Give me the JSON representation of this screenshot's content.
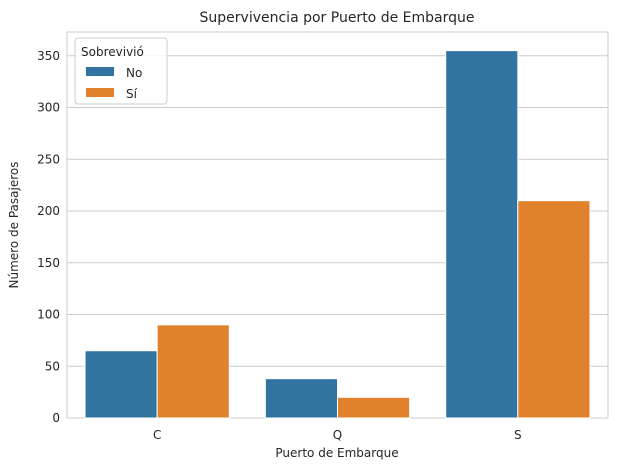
{
  "chart_data": {
    "type": "bar",
    "title": "Supervivencia por Puerto de Embarque",
    "xlabel": "Puerto de Embarque",
    "ylabel": "Número de Pasajeros",
    "categories": [
      "C",
      "Q",
      "S"
    ],
    "series": [
      {
        "name": "No",
        "values": [
          65,
          38,
          355
        ],
        "color": "#3274a1"
      },
      {
        "name": "Sí",
        "values": [
          90,
          20,
          210
        ],
        "color": "#e1812c"
      }
    ],
    "ylim": [
      0,
      373
    ],
    "yticks": [
      0,
      50,
      100,
      150,
      200,
      250,
      300,
      350
    ],
    "grid": true,
    "legend": {
      "title": "Sobrevivió",
      "placement": "top-left"
    }
  }
}
